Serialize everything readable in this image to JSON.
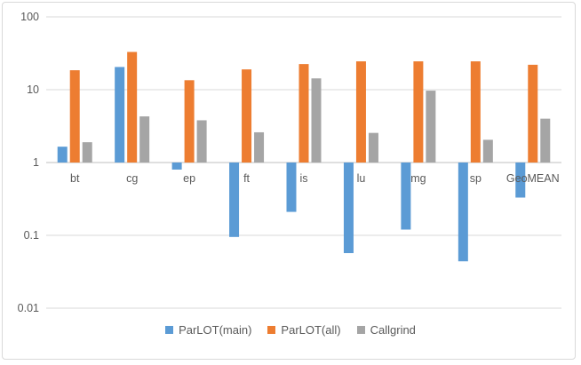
{
  "chart_data": {
    "type": "bar",
    "yscale": "log",
    "ylim": [
      0.01,
      100
    ],
    "grid": true,
    "legend_position": "bottom",
    "yticks": [
      0.01,
      0.1,
      1,
      10,
      100
    ],
    "ytick_labels": [
      "0.01",
      "0.1",
      "1",
      "10",
      "100"
    ],
    "baseline": 1,
    "categories": [
      "bt",
      "cg",
      "ep",
      "ft",
      "is",
      "lu",
      "mg",
      "sp",
      "GeoMEAN"
    ],
    "series": [
      {
        "name": "ParLOT(main)",
        "color": "#5b9bd5",
        "values": [
          1.65,
          20.5,
          0.8,
          0.095,
          0.21,
          0.057,
          0.12,
          0.044,
          0.33
        ]
      },
      {
        "name": "ParLOT(all)",
        "color": "#ed7d31",
        "values": [
          18.5,
          33,
          13.5,
          19,
          22.5,
          24.5,
          24.5,
          24.5,
          22
        ]
      },
      {
        "name": "Callgrind",
        "color": "#a5a5a5",
        "values": [
          1.9,
          4.3,
          3.8,
          2.6,
          14.3,
          2.55,
          9.7,
          2.05,
          4.0
        ]
      }
    ]
  }
}
